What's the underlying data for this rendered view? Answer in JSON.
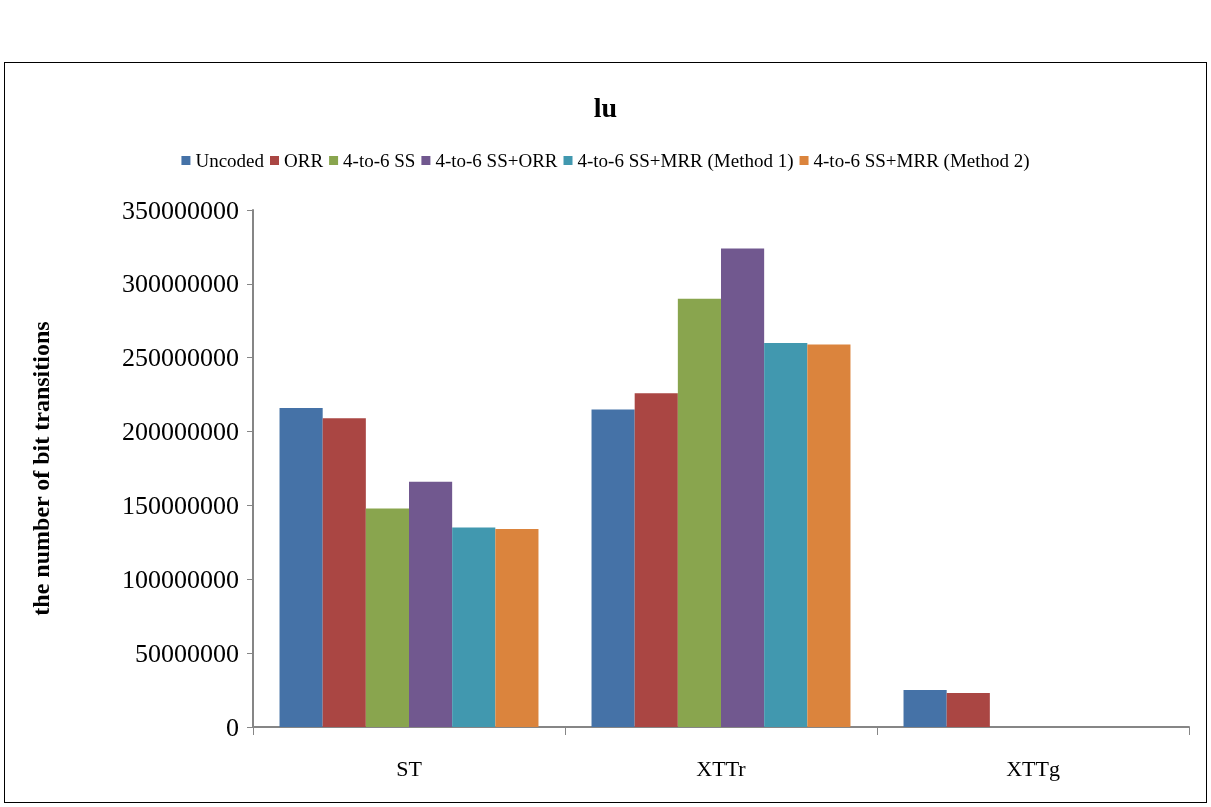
{
  "chart_data": {
    "type": "bar",
    "title": "lu",
    "ylabel": "the number of bit transitions",
    "categories": [
      "ST",
      "XTTr",
      "XTTg"
    ],
    "series": [
      {
        "name": "Uncoded",
        "color": "#4572a7",
        "values": [
          216000000,
          215000000,
          25000000
        ]
      },
      {
        "name": "ORR",
        "color": "#aa4643",
        "values": [
          209000000,
          226000000,
          23000000
        ]
      },
      {
        "name": "4-to-6 SS",
        "color": "#89a54e",
        "values": [
          148000000,
          290000000,
          0
        ]
      },
      {
        "name": "4-to-6 SS+ORR",
        "color": "#71588f",
        "values": [
          166000000,
          324000000,
          0
        ]
      },
      {
        "name": "4-to-6 SS+MRR (Method 1)",
        "color": "#4198af",
        "values": [
          135000000,
          260000000,
          0
        ]
      },
      {
        "name": "4-to-6 SS+MRR (Method 2)",
        "color": "#db843d",
        "values": [
          134000000,
          259000000,
          0
        ]
      }
    ],
    "ylim": [
      0,
      350000000
    ],
    "yticks": [
      0,
      50000000,
      100000000,
      150000000,
      200000000,
      250000000,
      300000000,
      350000000
    ],
    "grid": false,
    "legend": "top"
  }
}
